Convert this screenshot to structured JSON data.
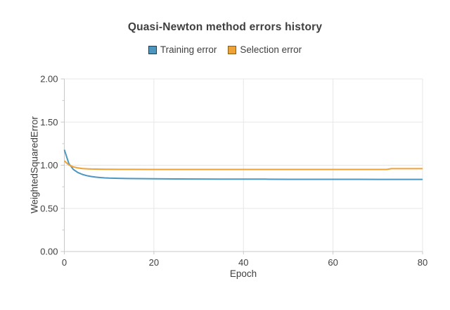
{
  "chart_data": {
    "type": "line",
    "title": "Quasi-Newton method errors history",
    "xlabel": "Epoch",
    "ylabel": "WeightedSquaredError",
    "xlim": [
      0,
      80
    ],
    "ylim": [
      0,
      2
    ],
    "x_ticks": [
      0,
      20,
      40,
      60,
      80
    ],
    "y_ticks": [
      0,
      0.5,
      1,
      1.5,
      2
    ],
    "y_tick_decimals": 2,
    "y_minor_ticks": true,
    "grid": true,
    "legend_position": "top",
    "colors": {
      "grid": "#e7e7e7",
      "axis": "#c8c8c8",
      "text": "#3f3f3f"
    },
    "series": [
      {
        "name": "Training error",
        "color": "#4d96bf",
        "marker_border": "#1d3d52",
        "points": [
          [
            0,
            1.18
          ],
          [
            1,
            1.02
          ],
          [
            2,
            0.952
          ],
          [
            3,
            0.916
          ],
          [
            4,
            0.894
          ],
          [
            5,
            0.879
          ],
          [
            6,
            0.869
          ],
          [
            7,
            0.862
          ],
          [
            8,
            0.857
          ],
          [
            9,
            0.853
          ],
          [
            10,
            0.851
          ],
          [
            12,
            0.848
          ],
          [
            14,
            0.846
          ],
          [
            16,
            0.845
          ],
          [
            18,
            0.844
          ],
          [
            20,
            0.843
          ],
          [
            25,
            0.841
          ],
          [
            30,
            0.84
          ],
          [
            35,
            0.839
          ],
          [
            40,
            0.838
          ],
          [
            45,
            0.838
          ],
          [
            50,
            0.837
          ],
          [
            55,
            0.837
          ],
          [
            60,
            0.837
          ],
          [
            65,
            0.837
          ],
          [
            70,
            0.836
          ],
          [
            75,
            0.836
          ],
          [
            80,
            0.836
          ]
        ]
      },
      {
        "name": "Selection error",
        "color": "#efa236",
        "marker_border": "#8c5e12",
        "points": [
          [
            0,
            1.05
          ],
          [
            1,
            1.003
          ],
          [
            2,
            0.981
          ],
          [
            3,
            0.969
          ],
          [
            4,
            0.962
          ],
          [
            5,
            0.958
          ],
          [
            6,
            0.956
          ],
          [
            7,
            0.955
          ],
          [
            8,
            0.954
          ],
          [
            9,
            0.953
          ],
          [
            10,
            0.953
          ],
          [
            12,
            0.952
          ],
          [
            15,
            0.952
          ],
          [
            20,
            0.951
          ],
          [
            25,
            0.951
          ],
          [
            30,
            0.951
          ],
          [
            40,
            0.951
          ],
          [
            50,
            0.951
          ],
          [
            60,
            0.951
          ],
          [
            70,
            0.951
          ],
          [
            72,
            0.951
          ],
          [
            73,
            0.96
          ],
          [
            75,
            0.96
          ],
          [
            80,
            0.96
          ]
        ]
      }
    ]
  }
}
